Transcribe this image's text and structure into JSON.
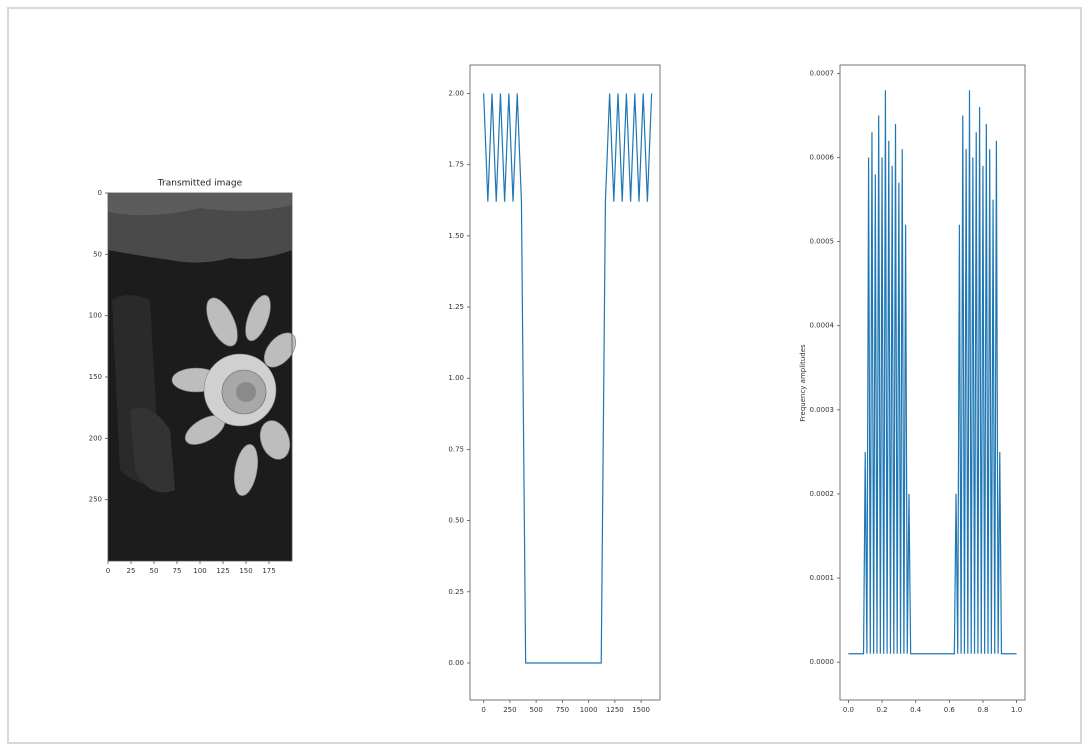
{
  "chart_data": [
    {
      "type": "image",
      "title": "Transmitted image",
      "xlim": [
        0,
        200
      ],
      "ylim": [
        300,
        0
      ],
      "xticks": [
        0,
        25,
        50,
        75,
        100,
        125,
        150,
        175
      ],
      "yticks": [
        0,
        50,
        100,
        150,
        200,
        250
      ]
    },
    {
      "type": "line",
      "color": "#1f77b4",
      "x": [
        0,
        40,
        80,
        120,
        160,
        200,
        240,
        280,
        320,
        360,
        400,
        440,
        480,
        520,
        560,
        600,
        640,
        680,
        720,
        760,
        800,
        840,
        880,
        920,
        960,
        1000,
        1040,
        1080,
        1120,
        1160,
        1200,
        1240,
        1280,
        1320,
        1360,
        1400,
        1440,
        1480,
        1520,
        1560,
        1600
      ],
      "values": [
        2,
        1.62,
        2,
        1.62,
        2,
        1.62,
        2,
        1.62,
        2,
        1.62,
        0,
        0,
        0,
        0,
        0,
        0,
        0,
        0,
        0,
        0,
        0,
        0,
        0,
        0,
        0,
        0,
        0,
        0,
        0,
        1.62,
        2,
        1.62,
        2,
        1.62,
        2,
        1.62,
        2,
        1.62,
        2,
        1.62,
        2
      ],
      "xlim": [
        -130,
        1680
      ],
      "ylim": [
        -0.13,
        2.1
      ],
      "xticks": [
        0,
        250,
        500,
        750,
        1000,
        1250,
        1500
      ],
      "yticks": [
        {
          "value": 0,
          "label": "0.00"
        },
        0.25,
        {
          "value": 0.5,
          "label": "0.50"
        },
        0.75,
        {
          "value": 1,
          "label": "1.00"
        },
        1.25,
        {
          "value": 1.5,
          "label": "1.50"
        },
        1.75,
        {
          "value": 2,
          "label": "2.00"
        }
      ]
    },
    {
      "type": "line",
      "color": "#1f77b4",
      "y_label": "Frequency amplitudes",
      "x": [
        0,
        0.01,
        0.02,
        0.03,
        0.04,
        0.05,
        0.06,
        0.07,
        0.08,
        0.09,
        0.1,
        0.11,
        0.12,
        0.13,
        0.14,
        0.15,
        0.16,
        0.17,
        0.18,
        0.19,
        0.2,
        0.21,
        0.22,
        0.23,
        0.24,
        0.25,
        0.26,
        0.27,
        0.28,
        0.29,
        0.3,
        0.31,
        0.32,
        0.33,
        0.34,
        0.35,
        0.36,
        0.37,
        0.38,
        0.39,
        0.4,
        0.41,
        0.42,
        0.43,
        0.44,
        0.45,
        0.46,
        0.47,
        0.48,
        0.49,
        0.5,
        0.51,
        0.52,
        0.53,
        0.54,
        0.55,
        0.56,
        0.57,
        0.58,
        0.59,
        0.6,
        0.61,
        0.62,
        0.63,
        0.64,
        0.65,
        0.66,
        0.67,
        0.68,
        0.69,
        0.7,
        0.71,
        0.72,
        0.73,
        0.74,
        0.75,
        0.76,
        0.77,
        0.78,
        0.79,
        0.8,
        0.81,
        0.82,
        0.83,
        0.84,
        0.85,
        0.86,
        0.87,
        0.88,
        0.89,
        0.9,
        0.91,
        0.92,
        0.93,
        0.94,
        0.95,
        0.96,
        0.97,
        0.98,
        0.99,
        1
      ],
      "values": [
        1e-05,
        1e-05,
        1e-05,
        1e-05,
        1e-05,
        1e-05,
        1e-05,
        1e-05,
        1e-05,
        1e-05,
        0.00025,
        1e-05,
        0.0006,
        1e-05,
        0.00063,
        1e-05,
        0.00058,
        1e-05,
        0.00065,
        1e-05,
        0.0006,
        1e-05,
        0.00068,
        1e-05,
        0.00062,
        1e-05,
        0.00059,
        1e-05,
        0.00064,
        1e-05,
        0.00057,
        1e-05,
        0.00061,
        1e-05,
        0.00052,
        1e-05,
        0.0002,
        1e-05,
        1e-05,
        1e-05,
        1e-05,
        1e-05,
        1e-05,
        1e-05,
        1e-05,
        1e-05,
        1e-05,
        1e-05,
        1e-05,
        1e-05,
        1e-05,
        1e-05,
        1e-05,
        1e-05,
        1e-05,
        1e-05,
        1e-05,
        1e-05,
        1e-05,
        1e-05,
        1e-05,
        1e-05,
        1e-05,
        1e-05,
        0.0002,
        1e-05,
        0.00052,
        1e-05,
        0.00065,
        1e-05,
        0.00061,
        1e-05,
        0.00068,
        1e-05,
        0.0006,
        1e-05,
        0.00063,
        1e-05,
        0.00066,
        1e-05,
        0.00059,
        1e-05,
        0.00064,
        1e-05,
        0.00061,
        1e-05,
        0.00055,
        1e-05,
        0.00062,
        1e-05,
        0.00025,
        1e-05,
        1e-05,
        1e-05,
        1e-05,
        1e-05,
        1e-05,
        1e-05,
        1e-05,
        1e-05,
        1e-05
      ],
      "xlim": [
        -0.05,
        1.05
      ],
      "ylim": [
        -4.5e-05,
        0.00071
      ],
      "xticks": [
        {
          "value": 0,
          "label": "0.0"
        },
        {
          "value": 0.2,
          "label": "0.2"
        },
        {
          "value": 0.4,
          "label": "0.4"
        },
        {
          "value": 0.6,
          "label": "0.6"
        },
        {
          "value": 0.8,
          "label": "0.8"
        },
        {
          "value": 1,
          "label": "1.0"
        }
      ],
      "yticks": [
        {
          "value": 0,
          "label": "0.0000"
        },
        {
          "value": 0.0001,
          "label": "0.0001"
        },
        {
          "value": 0.0002,
          "label": "0.0002"
        },
        {
          "value": 0.0003,
          "label": "0.0003"
        },
        {
          "value": 0.0004,
          "label": "0.0004"
        },
        {
          "value": 0.0005,
          "label": "0.0005"
        },
        {
          "value": 0.0006,
          "label": "0.0006"
        },
        {
          "value": 0.0007,
          "label": "0.0007"
        }
      ]
    }
  ]
}
